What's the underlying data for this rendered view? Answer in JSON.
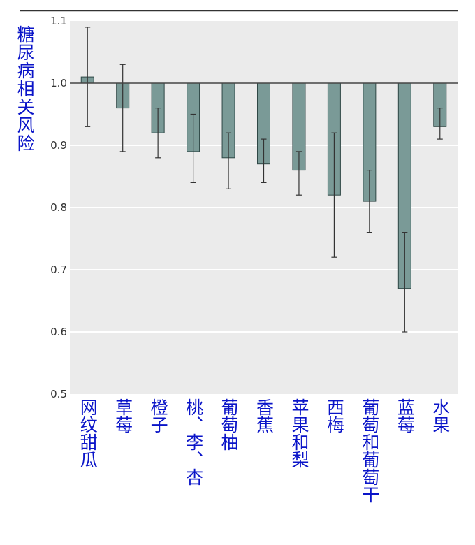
{
  "chart_data": {
    "type": "bar",
    "ylabel": "糖尿病相关风险",
    "ylim": [
      0.5,
      1.1
    ],
    "yticks": [
      "0.5",
      "0.6",
      "0.7",
      "0.8",
      "0.9",
      "1.0",
      "1.1"
    ],
    "baseline": 1.0,
    "grid": true,
    "categories": [
      "网纹甜瓜",
      "草莓",
      "橙子",
      "桃、李、杏",
      "葡萄柚",
      "香蕉",
      "苹果和梨",
      "西梅",
      "葡萄和葡萄干",
      "蓝莓",
      "水果"
    ],
    "values": [
      1.01,
      0.96,
      0.92,
      0.89,
      0.88,
      0.87,
      0.86,
      0.82,
      0.81,
      0.67,
      0.93
    ],
    "error_low": [
      0.93,
      0.89,
      0.88,
      0.84,
      0.83,
      0.84,
      0.82,
      0.72,
      0.76,
      0.6,
      0.91
    ],
    "error_high": [
      1.09,
      1.03,
      0.96,
      0.95,
      0.92,
      0.91,
      0.89,
      0.92,
      0.86,
      0.76,
      0.96
    ],
    "colors": {
      "bar": "#7a9a97",
      "bar_edge": "#2e4745",
      "plot_bg": "#ebebeb",
      "label": "#0a14c8"
    }
  }
}
